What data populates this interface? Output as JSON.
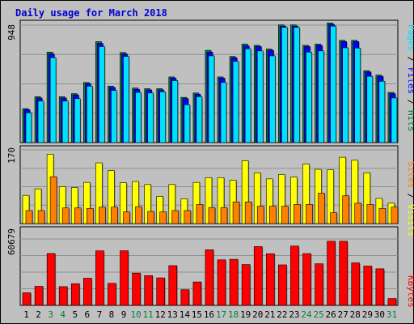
{
  "chart_data": {
    "type": "bar",
    "title": "Daily usage for March 2018",
    "categories": [
      "1",
      "2",
      "3",
      "4",
      "5",
      "6",
      "7",
      "8",
      "9",
      "10",
      "11",
      "12",
      "13",
      "14",
      "15",
      "16",
      "17",
      "18",
      "19",
      "20",
      "21",
      "22",
      "23",
      "24",
      "25",
      "26",
      "27",
      "28",
      "29",
      "30",
      "31"
    ],
    "weekend_days": [
      "3",
      "4",
      "10",
      "11",
      "17",
      "18",
      "24",
      "25",
      "31"
    ],
    "panels": [
      {
        "id": "hits-files-pages",
        "max_label": "948",
        "ylim": [
          0,
          948
        ],
        "right_label_parts": [
          "Pages",
          "Files",
          "Hits"
        ],
        "series": [
          {
            "name": "Hits",
            "color": "#008040",
            "values": [
              274,
              370,
              730,
              370,
              395,
              485,
              815,
              455,
              727,
              440,
              435,
              435,
              530,
              365,
              400,
              745,
              530,
              695,
              795,
              785,
              755,
              950,
              950,
              785,
              795,
              965,
              825,
              825,
              580,
              545,
              405
            ]
          },
          {
            "name": "Files",
            "color": "#0000FF",
            "values": [
              265,
              360,
              715,
              360,
              385,
              475,
              800,
              445,
              715,
              430,
              425,
              425,
              520,
              355,
              390,
              730,
              520,
              685,
              780,
              775,
              745,
              940,
              940,
              775,
              785,
              955,
              815,
              815,
              570,
              535,
              395
            ]
          },
          {
            "name": "Pages",
            "color": "#00E0FF",
            "values": [
              240,
              335,
              685,
              335,
              355,
              455,
              775,
              420,
              695,
              405,
              400,
              410,
              500,
              305,
              370,
              700,
              485,
              655,
              757,
              740,
              700,
              930,
              930,
              730,
              740,
              940,
              765,
              763,
              535,
              495,
              360
            ]
          }
        ]
      },
      {
        "id": "visits-sites",
        "max_label": "170",
        "ylim": [
          0,
          170
        ],
        "right_label_parts": [
          "Sites",
          "Visits"
        ],
        "series": [
          {
            "name": "Visits",
            "color": "#FFFF00",
            "values": [
              65,
              80,
              160,
              85,
              83,
              95,
              140,
              122,
              94,
              97,
              90,
              63,
              90,
              57,
              95,
              106,
              106,
              100,
              145,
              117,
              103,
              113,
              107,
              137,
              125,
              124,
              153,
              146,
              117,
              58,
              47
            ]
          },
          {
            "name": "Sites",
            "color": "#FF8000",
            "values": [
              30,
              30,
              108,
              36,
              36,
              35,
              38,
              38,
              27,
              39,
              28,
              27,
              30,
              30,
              44,
              37,
              37,
              50,
              50,
              40,
              40,
              40,
              44,
              44,
              70,
              25,
              64,
              47,
              44,
              35,
              38
            ]
          }
        ]
      },
      {
        "id": "kbytes",
        "max_label": "60679",
        "ylim": [
          0,
          60679
        ],
        "right_label_parts": [
          "KBytes"
        ],
        "series": [
          {
            "name": "KBytes",
            "color": "#FF0000",
            "values": [
              11500,
              17400,
              47400,
              17100,
              19800,
              24800,
              49800,
              20100,
              49900,
              29500,
              27200,
              25100,
              36300,
              14300,
              21400,
              50800,
              41600,
              42100,
              37300,
              53700,
              47200,
              37000,
              54200,
              47300,
              38000,
              58600,
              58600,
              38800,
              35900,
              33400,
              6200
            ]
          }
        ]
      }
    ]
  }
}
